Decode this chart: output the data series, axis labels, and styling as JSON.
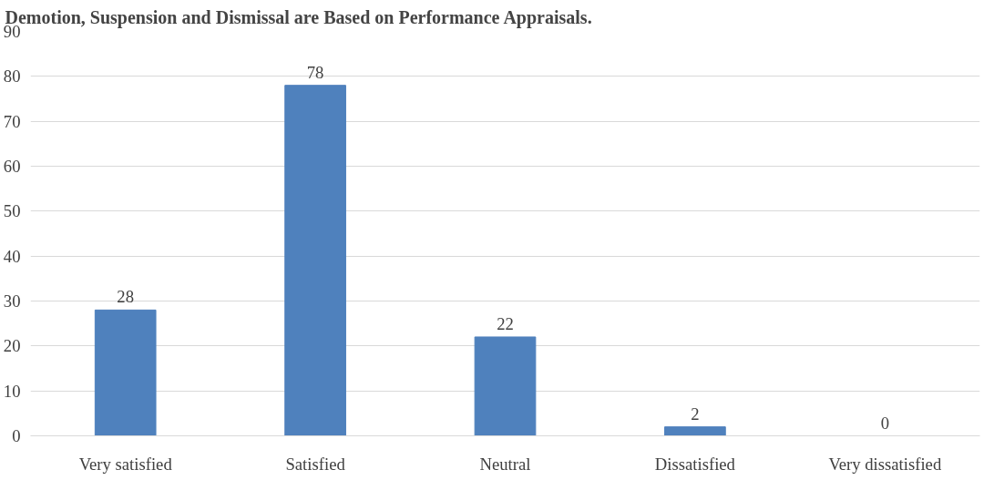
{
  "chart_data": {
    "type": "bar",
    "title": "Demotion, Suspension and Dismissal are Based on Performance Appraisals.",
    "categories": [
      "Very satisfied",
      "Satisfied",
      "Neutral",
      "Dissatisfied",
      "Very dissatisfied"
    ],
    "values": [
      28,
      78,
      22,
      2,
      0
    ],
    "color": "#4f81bd",
    "data_labels": true,
    "ylim": [
      0,
      90
    ],
    "yticks": [
      0,
      10,
      20,
      30,
      40,
      50,
      60,
      70,
      80,
      90
    ],
    "grid": "y"
  }
}
